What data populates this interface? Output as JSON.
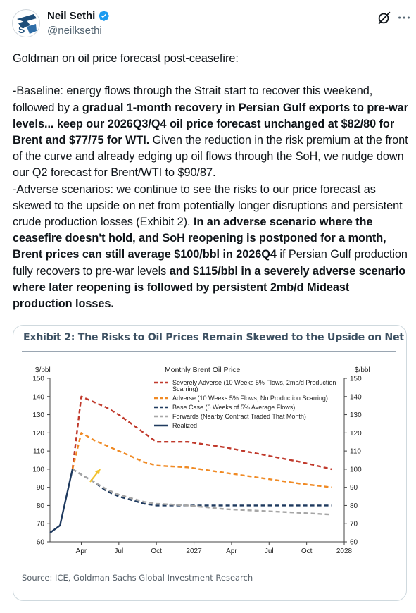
{
  "author": {
    "display_name": "Neil Sethi",
    "handle": "@neilksethi",
    "avatar_icon": "sa-logo-icon",
    "verified_icon": "verified-badge-icon"
  },
  "actions": {
    "grok_icon": "grok-icon",
    "more_icon": "more-icon",
    "more_glyph": "···"
  },
  "tweet": {
    "l1": "Goldman on oil price forecast post-ceasefire:",
    "l2a": "-Baseline: energy flows through the Strait start to recover this weekend, followed by a ",
    "l2b": "gradual 1-month recovery in Persian Gulf exports to pre-war levels... keep our 2026Q3/Q4 oil price forecast unchanged at $82/80 for Brent and $77/75 for WTI.",
    "l2c": " Given the reduction in the risk premium at the front of the curve and already edging up oil flows through the SoH, we nudge down our Q2 forecast for Brent/WTI to $90/87.",
    "l3a": "-Adverse scenarios: we continue to see the risks to our price forecast as skewed to the upside on net from potentially longer disruptions and persistent crude production losses (Exhibit 2). ",
    "l3b": "In an adverse scenario where the ceasefire doesn't hold, and SoH reopening is postponed for a month, Brent prices can still average $100/bbl in 2026Q4",
    "l3c": " if Persian Gulf production fully recovers to pre-war levels ",
    "l3d": "and $115/bbl in a severely adverse scenario where later reopening is followed by persistent 2mb/d Mideast production losses."
  },
  "exhibit": {
    "title": "Exhibit 2: The Risks to Oil Prices Remain Skewed to the Upside on Net",
    "source": "Source: ICE, Goldman Sachs Global Investment Research"
  },
  "chart_data": {
    "type": "line",
    "title": "Monthly Brent Oil Price",
    "ylabel_left": "$/bbl",
    "ylabel_right": "$/bbl",
    "ylim": [
      60,
      150
    ],
    "yticks": [
      60,
      70,
      80,
      90,
      100,
      110,
      120,
      130,
      140,
      150
    ],
    "xlim": [
      0,
      23
    ],
    "xticks": [
      {
        "label": "Apr",
        "x": 2.5
      },
      {
        "label": "Jul",
        "x": 5.5
      },
      {
        "label": "Oct",
        "x": 8.5
      },
      {
        "label": "2027",
        "x": 11.5
      },
      {
        "label": "Apr",
        "x": 14.5
      },
      {
        "label": "Jul",
        "x": 17.5
      },
      {
        "label": "Oct",
        "x": 20.5
      },
      {
        "label": "2028",
        "x": 23.5
      }
    ],
    "legend_placement": "top-center",
    "series": [
      {
        "name": "Severely Adverse (10 Weeks 5% Flows, 2mb/d Production Scarring)",
        "color": "#c0392b",
        "dash": "dashed",
        "x": [
          1.8,
          2.5,
          3.5,
          4.5,
          5.5,
          6.5,
          7.5,
          8.5,
          11,
          14,
          17,
          20,
          22.5
        ],
        "y": [
          100,
          140,
          137,
          134,
          130,
          125,
          120,
          115,
          115,
          112,
          108,
          104,
          100
        ]
      },
      {
        "name": "Adverse (10 Weeks 5% Flows, No Production Scarring)",
        "color": "#f08a24",
        "dash": "dashed",
        "x": [
          1.8,
          2.5,
          3.5,
          4.5,
          5.5,
          6.5,
          7.5,
          8.5,
          11,
          14,
          17,
          20,
          22.5
        ],
        "y": [
          100,
          120,
          116,
          113,
          110,
          107,
          104,
          102,
          101,
          98,
          95,
          92,
          90
        ]
      },
      {
        "name": "Base Case (6 Weeks of 5% Average Flows)",
        "color": "#1f3a5f",
        "dash": "dashed",
        "x": [
          1.8,
          2.5,
          3.5,
          4.5,
          5.5,
          6.5,
          7.5,
          8.5,
          11,
          14,
          17,
          20,
          22.5
        ],
        "y": [
          100,
          97,
          93,
          88,
          85,
          83,
          81,
          80,
          80,
          80,
          80,
          80,
          80
        ]
      },
      {
        "name": "Forwards (Nearby Contract Traded That Month)",
        "color": "#a6a6a6",
        "dash": "dashed",
        "x": [
          1.8,
          2.5,
          3.5,
          4.5,
          5.5,
          6.5,
          7.5,
          8.5,
          11,
          14,
          17,
          20,
          22.5
        ],
        "y": [
          100,
          97,
          93,
          89,
          86,
          84,
          82,
          81,
          80,
          78,
          77,
          76,
          75
        ]
      },
      {
        "name": "Realized",
        "color": "#1f3a5f",
        "dash": "solid",
        "x": [
          0,
          0.8,
          1.8
        ],
        "y": [
          65,
          69,
          100
        ]
      }
    ],
    "annotation": {
      "type": "arrow",
      "color": "#f2c12e",
      "from": [
        3.2,
        93
      ],
      "to": [
        4,
        100
      ]
    }
  }
}
